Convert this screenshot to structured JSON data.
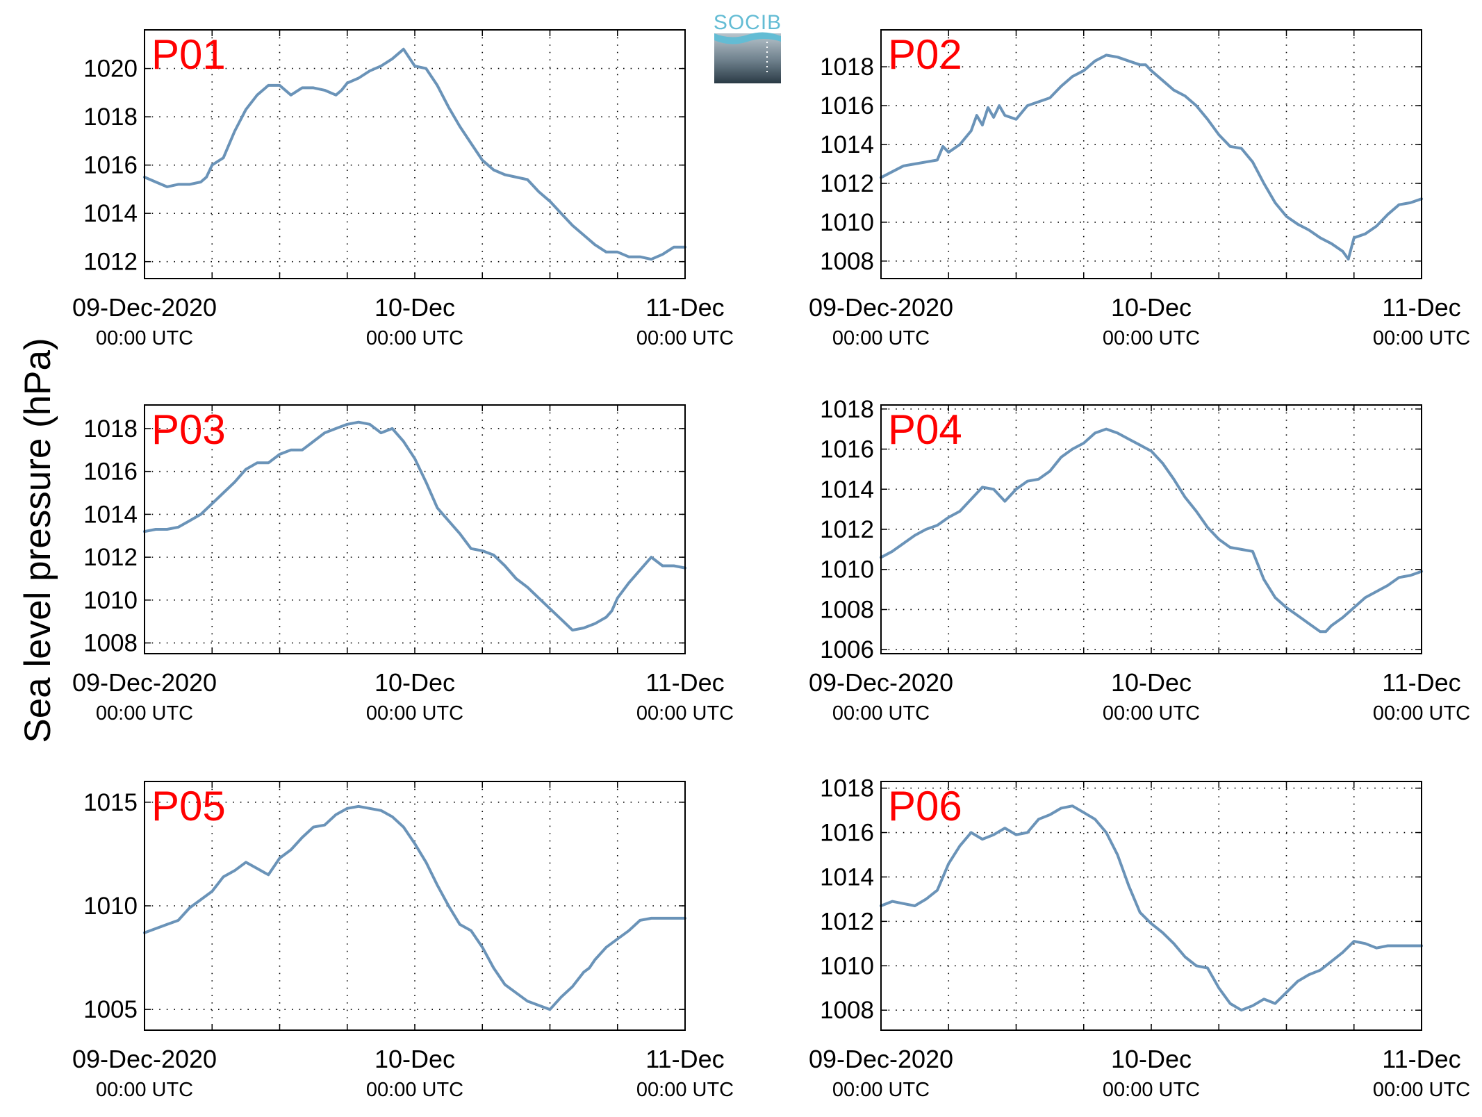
{
  "figure": {
    "ylabel": "Sea level pressure (hPa)",
    "logo_text": "SOCIB"
  },
  "colors": {
    "series": "#6a93b8",
    "panel_label": "#ff0000",
    "logo_text": "#63bcd4",
    "logo_dark": "#2e3f4a",
    "logo_light": "#9aa8b0"
  },
  "chart_data": [
    {
      "type": "line",
      "panel": "P01",
      "x_ticks": [
        {
          "main": "09-Dec-2020",
          "sub": "00:00 UTC"
        },
        {
          "main": "10-Dec",
          "sub": "00:00 UTC"
        },
        {
          "main": "11-Dec",
          "sub": "00:00 UTC"
        }
      ],
      "xlim_hours": [
        0,
        48
      ],
      "ylim": [
        1011.3,
        1021.6
      ],
      "y_ticks": [
        1012,
        1014,
        1016,
        1018,
        1020
      ],
      "grid": true,
      "series": [
        {
          "x_hours": [
            0,
            1,
            2,
            3,
            4,
            5,
            5.5,
            6,
            7,
            8,
            9,
            10,
            11,
            12,
            13,
            14,
            15,
            16,
            17,
            17.5,
            18,
            19,
            20,
            21,
            22,
            23,
            24,
            25,
            26,
            27,
            28,
            29,
            30,
            31,
            32,
            33,
            34,
            35,
            36,
            37,
            38,
            39,
            40,
            41,
            42,
            43,
            44,
            45,
            46,
            47,
            48
          ],
          "values": [
            1015.5,
            1015.3,
            1015.1,
            1015.2,
            1015.2,
            1015.3,
            1015.5,
            1016.0,
            1016.3,
            1017.4,
            1018.3,
            1018.9,
            1019.3,
            1019.3,
            1018.9,
            1019.2,
            1019.2,
            1019.1,
            1018.9,
            1019.1,
            1019.4,
            1019.6,
            1019.9,
            1020.1,
            1020.4,
            1020.8,
            1020.1,
            1020.0,
            1019.3,
            1018.4,
            1017.6,
            1016.9,
            1016.2,
            1015.8,
            1015.6,
            1015.5,
            1015.4,
            1014.9,
            1014.5,
            1014.0,
            1013.5,
            1013.1,
            1012.7,
            1012.4,
            1012.4,
            1012.2,
            1012.2,
            1012.1,
            1012.3,
            1012.6,
            1012.6
          ]
        }
      ]
    },
    {
      "type": "line",
      "panel": "P02",
      "x_ticks": [
        {
          "main": "09-Dec-2020",
          "sub": "00:00 UTC"
        },
        {
          "main": "10-Dec",
          "sub": "00:00 UTC"
        },
        {
          "main": "11-Dec",
          "sub": "00:00 UTC"
        }
      ],
      "xlim_hours": [
        0,
        48
      ],
      "ylim": [
        1007.1,
        1019.9
      ],
      "y_ticks": [
        1008,
        1010,
        1012,
        1014,
        1016,
        1018
      ],
      "grid": true,
      "series": [
        {
          "x_hours": [
            0,
            1,
            2,
            3,
            4,
            5,
            5.5,
            6,
            7,
            8,
            8.5,
            9,
            9.5,
            10,
            10.5,
            11,
            12,
            13,
            14,
            15,
            16,
            17,
            18,
            19,
            20,
            21,
            22,
            23,
            23.5,
            24,
            25,
            26,
            27,
            28,
            29,
            30,
            31,
            32,
            33,
            34,
            35,
            36,
            37,
            38,
            39,
            40,
            41,
            41.5,
            42,
            43,
            44,
            45,
            46,
            47,
            48
          ],
          "values": [
            1012.3,
            1012.6,
            1012.9,
            1013.0,
            1013.1,
            1013.2,
            1013.9,
            1013.6,
            1014.0,
            1014.7,
            1015.5,
            1015.0,
            1015.9,
            1015.4,
            1016.0,
            1015.5,
            1015.3,
            1016.0,
            1016.2,
            1016.4,
            1017.0,
            1017.5,
            1017.8,
            1018.3,
            1018.6,
            1018.5,
            1018.3,
            1018.1,
            1018.1,
            1017.8,
            1017.3,
            1016.8,
            1016.5,
            1016.0,
            1015.3,
            1014.5,
            1013.9,
            1013.8,
            1013.1,
            1012.0,
            1011.0,
            1010.3,
            1009.9,
            1009.6,
            1009.2,
            1008.9,
            1008.5,
            1008.1,
            1009.2,
            1009.4,
            1009.8,
            1010.4,
            1010.9,
            1011.0,
            1011.2
          ]
        }
      ]
    },
    {
      "type": "line",
      "panel": "P03",
      "x_ticks": [
        {
          "main": "09-Dec-2020",
          "sub": "00:00 UTC"
        },
        {
          "main": "10-Dec",
          "sub": "00:00 UTC"
        },
        {
          "main": "11-Dec",
          "sub": "00:00 UTC"
        }
      ],
      "xlim_hours": [
        0,
        48
      ],
      "ylim": [
        1007.5,
        1019.1
      ],
      "y_ticks": [
        1008,
        1010,
        1012,
        1014,
        1016,
        1018
      ],
      "grid": true,
      "series": [
        {
          "x_hours": [
            0,
            1,
            2,
            3,
            4,
            5,
            6,
            7,
            8,
            9,
            10,
            11,
            12,
            13,
            14,
            15,
            16,
            17,
            18,
            19,
            20,
            21,
            22,
            23,
            24,
            25,
            26,
            27,
            28,
            29,
            30,
            31,
            32,
            33,
            34,
            35,
            36,
            37,
            38,
            39,
            40,
            41,
            41.5,
            42,
            43,
            44,
            45,
            46,
            47,
            48
          ],
          "values": [
            1013.2,
            1013.3,
            1013.3,
            1013.4,
            1013.7,
            1014.0,
            1014.5,
            1015.0,
            1015.5,
            1016.1,
            1016.4,
            1016.4,
            1016.8,
            1017.0,
            1017.0,
            1017.4,
            1017.8,
            1018.0,
            1018.2,
            1018.3,
            1018.2,
            1017.8,
            1018.0,
            1017.4,
            1016.6,
            1015.5,
            1014.3,
            1013.7,
            1013.1,
            1012.4,
            1012.3,
            1012.1,
            1011.6,
            1011.0,
            1010.6,
            1010.1,
            1009.6,
            1009.1,
            1008.6,
            1008.7,
            1008.9,
            1009.2,
            1009.5,
            1010.1,
            1010.8,
            1011.4,
            1012.0,
            1011.6,
            1011.6,
            1011.5
          ]
        }
      ]
    },
    {
      "type": "line",
      "panel": "P04",
      "x_ticks": [
        {
          "main": "09-Dec-2020",
          "sub": "00:00 UTC"
        },
        {
          "main": "10-Dec",
          "sub": "00:00 UTC"
        },
        {
          "main": "11-Dec",
          "sub": "00:00 UTC"
        }
      ],
      "xlim_hours": [
        0,
        48
      ],
      "ylim": [
        1005.8,
        1018.2
      ],
      "y_ticks": [
        1006,
        1008,
        1010,
        1012,
        1014,
        1016,
        1018
      ],
      "grid": true,
      "series": [
        {
          "x_hours": [
            0,
            1,
            2,
            3,
            4,
            5,
            6,
            7,
            8,
            9,
            10,
            11,
            12,
            13,
            14,
            15,
            16,
            17,
            18,
            19,
            20,
            21,
            22,
            23,
            24,
            25,
            26,
            27,
            28,
            29,
            30,
            31,
            32,
            33,
            34,
            35,
            36,
            37,
            38,
            39,
            39.5,
            40,
            41,
            42,
            43,
            44,
            45,
            46,
            47,
            48
          ],
          "values": [
            1010.6,
            1010.9,
            1011.3,
            1011.7,
            1012.0,
            1012.2,
            1012.6,
            1012.9,
            1013.5,
            1014.1,
            1014.0,
            1013.4,
            1014.0,
            1014.4,
            1014.5,
            1014.9,
            1015.6,
            1016.0,
            1016.3,
            1016.8,
            1017.0,
            1016.8,
            1016.5,
            1016.2,
            1015.9,
            1015.3,
            1014.5,
            1013.6,
            1012.9,
            1012.1,
            1011.5,
            1011.1,
            1011.0,
            1010.9,
            1009.5,
            1008.6,
            1008.1,
            1007.7,
            1007.3,
            1006.9,
            1006.9,
            1007.2,
            1007.6,
            1008.1,
            1008.6,
            1008.9,
            1009.2,
            1009.6,
            1009.7,
            1009.9
          ]
        }
      ]
    },
    {
      "type": "line",
      "panel": "P05",
      "x_ticks": [
        {
          "main": "09-Dec-2020",
          "sub": "00:00 UTC"
        },
        {
          "main": "10-Dec",
          "sub": "00:00 UTC"
        },
        {
          "main": "11-Dec",
          "sub": "00:00 UTC"
        }
      ],
      "xlim_hours": [
        0,
        48
      ],
      "ylim": [
        1004.0,
        1016.0
      ],
      "y_ticks": [
        1005,
        1010,
        1015
      ],
      "grid": true,
      "series": [
        {
          "x_hours": [
            0,
            1,
            2,
            3,
            4,
            5,
            6,
            7,
            8,
            9,
            10,
            11,
            12,
            13,
            14,
            15,
            16,
            17,
            18,
            19,
            20,
            21,
            22,
            23,
            24,
            25,
            26,
            27,
            28,
            29,
            30,
            31,
            32,
            33,
            34,
            35,
            36,
            37,
            38,
            39,
            39.5,
            40,
            41,
            42,
            43,
            44,
            45,
            46,
            47,
            48
          ],
          "values": [
            1008.7,
            1008.9,
            1009.1,
            1009.3,
            1009.9,
            1010.3,
            1010.7,
            1011.4,
            1011.7,
            1012.1,
            1011.8,
            1011.5,
            1012.3,
            1012.7,
            1013.3,
            1013.8,
            1013.9,
            1014.4,
            1014.7,
            1014.8,
            1014.7,
            1014.6,
            1014.3,
            1013.8,
            1013.0,
            1012.1,
            1011.0,
            1010.0,
            1009.1,
            1008.8,
            1008.0,
            1007.0,
            1006.2,
            1005.8,
            1005.4,
            1005.2,
            1005.0,
            1005.6,
            1006.1,
            1006.8,
            1007.0,
            1007.4,
            1008.0,
            1008.4,
            1008.8,
            1009.3,
            1009.4,
            1009.4,
            1009.4,
            1009.4
          ]
        }
      ]
    },
    {
      "type": "line",
      "panel": "P06",
      "x_ticks": [
        {
          "main": "09-Dec-2020",
          "sub": "00:00 UTC"
        },
        {
          "main": "10-Dec",
          "sub": "00:00 UTC"
        },
        {
          "main": "11-Dec",
          "sub": "00:00 UTC"
        }
      ],
      "xlim_hours": [
        0,
        48
      ],
      "ylim": [
        1007.1,
        1018.3
      ],
      "y_ticks": [
        1008,
        1010,
        1012,
        1014,
        1016,
        1018
      ],
      "grid": true,
      "series": [
        {
          "x_hours": [
            0,
            1,
            2,
            3,
            4,
            5,
            6,
            7,
            8,
            9,
            10,
            11,
            12,
            13,
            14,
            15,
            16,
            17,
            18,
            19,
            20,
            21,
            22,
            23,
            24,
            25,
            26,
            27,
            28,
            29,
            30,
            31,
            32,
            33,
            34,
            35,
            36,
            37,
            38,
            39,
            40,
            41,
            42,
            43,
            44,
            45,
            46,
            47,
            48
          ],
          "values": [
            1012.7,
            1012.9,
            1012.8,
            1012.7,
            1013.0,
            1013.4,
            1014.6,
            1015.4,
            1016.0,
            1015.7,
            1015.9,
            1016.2,
            1015.9,
            1016.0,
            1016.6,
            1016.8,
            1017.1,
            1017.2,
            1016.9,
            1016.6,
            1016.0,
            1015.0,
            1013.6,
            1012.4,
            1011.9,
            1011.5,
            1011.0,
            1010.4,
            1010.0,
            1009.9,
            1009.0,
            1008.3,
            1008.0,
            1008.2,
            1008.5,
            1008.3,
            1008.8,
            1009.3,
            1009.6,
            1009.8,
            1010.2,
            1010.6,
            1011.1,
            1011.0,
            1010.8,
            1010.9,
            1010.9,
            1010.9,
            1010.9
          ]
        }
      ]
    }
  ]
}
